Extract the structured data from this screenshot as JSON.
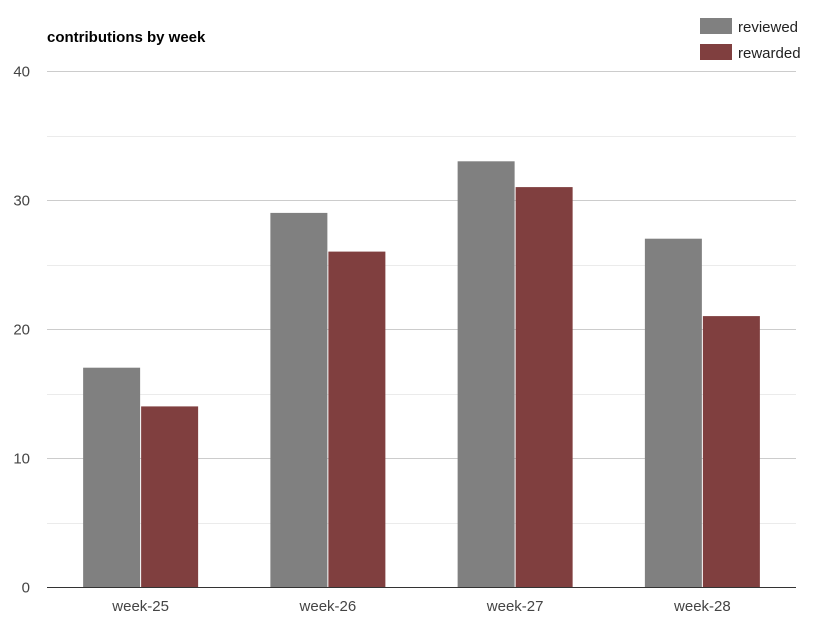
{
  "chart_data": {
    "type": "bar",
    "title": "contributions by week",
    "categories": [
      "week-25",
      "week-26",
      "week-27",
      "week-28"
    ],
    "series": [
      {
        "name": "reviewed",
        "values": [
          17,
          29,
          33,
          27
        ],
        "color": "#808080"
      },
      {
        "name": "rewarded",
        "values": [
          14,
          26,
          31,
          21
        ],
        "color": "#803f3f"
      }
    ],
    "xlabel": "",
    "ylabel": "",
    "ylim": [
      0,
      40
    ],
    "yticks": [
      "0",
      "10",
      "20",
      "30",
      "40"
    ],
    "grid": true,
    "minor_grid": true,
    "legend_position": "top-right",
    "grid_color": "#cccccc",
    "minor_grid_color": "#ebebeb",
    "axis_color": "#333333"
  }
}
